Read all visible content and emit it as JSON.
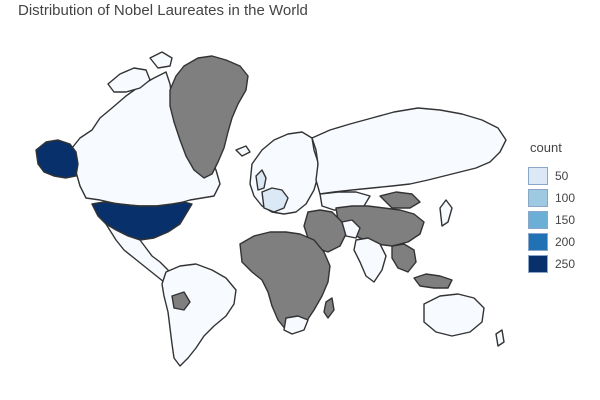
{
  "title": "Distribution of Nobel Laureates in the World",
  "legend": {
    "title": "count",
    "items": [
      {
        "label": "50",
        "color": "#dbe9f6"
      },
      {
        "label": "100",
        "color": "#9ecae1"
      },
      {
        "label": "150",
        "color": "#6baed6"
      },
      {
        "label": "200",
        "color": "#2171b5"
      },
      {
        "label": "250",
        "color": "#08306b"
      }
    ]
  },
  "map_data": {
    "type": "choropleth",
    "colors": {
      "no_data": "#7f7f7f",
      "low": "#f7fbff",
      "light": "#dbe9f6",
      "highest": "#08306b",
      "border": "#333333"
    },
    "regions": [
      {
        "name": "United States",
        "level": "highest"
      },
      {
        "name": "Alaska",
        "level": "highest"
      },
      {
        "name": "Canada",
        "level": "low"
      },
      {
        "name": "Greenland",
        "level": "no_data"
      },
      {
        "name": "Mexico",
        "level": "low"
      },
      {
        "name": "South America",
        "level": "low"
      },
      {
        "name": "Bolivia",
        "level": "no_data"
      },
      {
        "name": "United Kingdom",
        "level": "light"
      },
      {
        "name": "Germany",
        "level": "light"
      },
      {
        "name": "France",
        "level": "light"
      },
      {
        "name": "Europe",
        "level": "low"
      },
      {
        "name": "Russia",
        "level": "low"
      },
      {
        "name": "China",
        "level": "no_data"
      },
      {
        "name": "Mongolia",
        "level": "no_data"
      },
      {
        "name": "Central Asia",
        "level": "low"
      },
      {
        "name": "Iran",
        "level": "low"
      },
      {
        "name": "Middle East",
        "level": "no_data"
      },
      {
        "name": "India",
        "level": "low"
      },
      {
        "name": "Southeast Asia",
        "level": "no_data"
      },
      {
        "name": "Japan",
        "level": "low"
      },
      {
        "name": "Australia",
        "level": "low"
      },
      {
        "name": "Africa",
        "level": "no_data"
      },
      {
        "name": "South Africa",
        "level": "low"
      }
    ]
  }
}
